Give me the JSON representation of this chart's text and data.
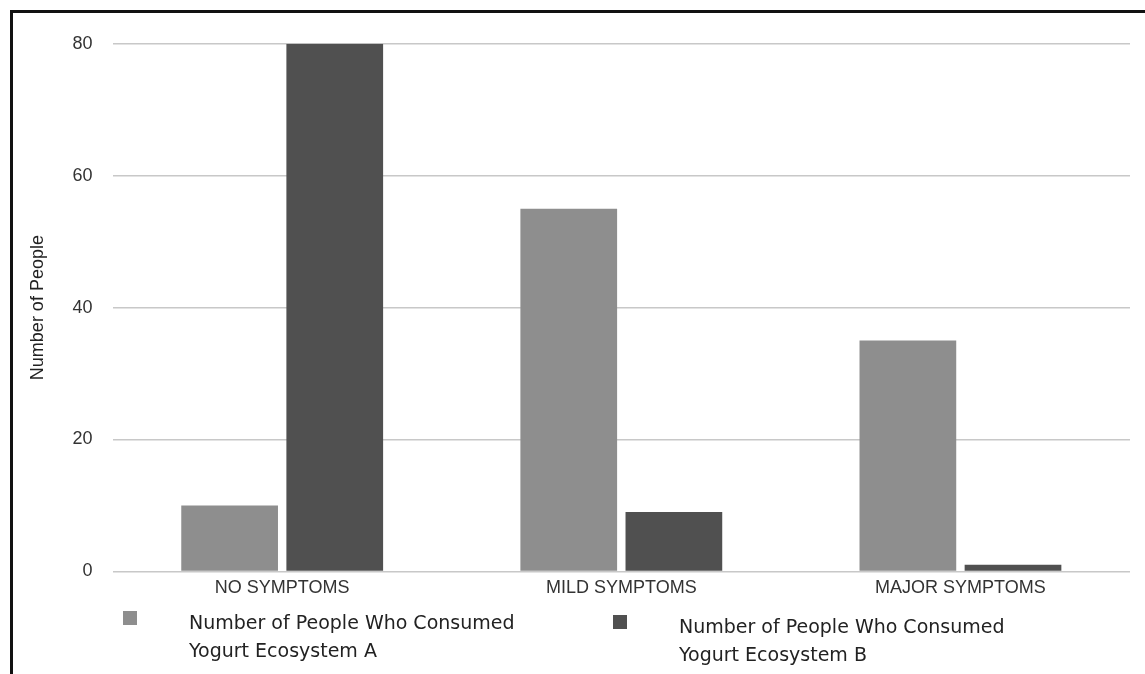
{
  "chart_data": {
    "type": "bar",
    "ylabel": "Number of People",
    "categories": [
      "NO SYMPTOMS",
      "MILD SYMPTOMS",
      "MAJOR SYMPTOMS"
    ],
    "series": [
      {
        "name": "Number of People Who Consumed Yogurt Ecosystem A",
        "color": "#8e8e8e",
        "values": [
          10,
          55,
          35
        ]
      },
      {
        "name": "Number of People Who Consumed Yogurt Ecosystem B",
        "color": "#505050",
        "values": [
          80,
          9,
          1
        ]
      }
    ],
    "ylim": [
      0,
      80
    ],
    "yticks": [
      0,
      20,
      40,
      60,
      80
    ],
    "grid": "y",
    "legend": "bottom"
  }
}
